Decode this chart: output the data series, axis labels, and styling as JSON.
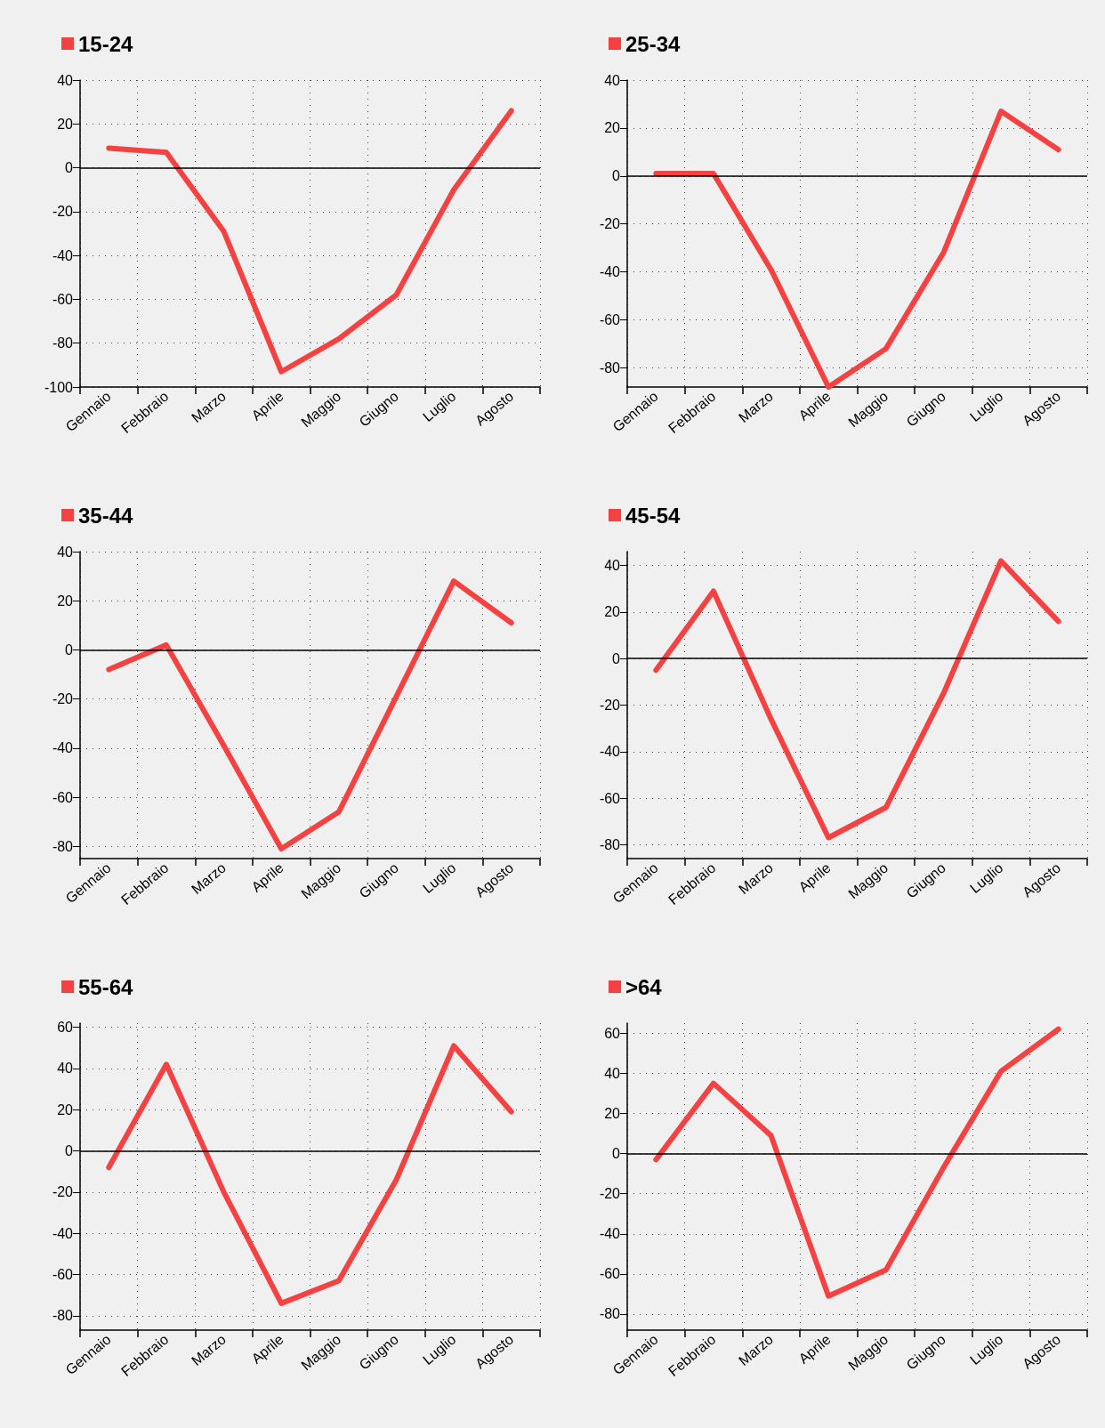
{
  "chart_data": [
    {
      "type": "line",
      "categories": [
        "Gennaio",
        "Febbraio",
        "Marzo",
        "Aprile",
        "Maggio",
        "Giugno",
        "Luglio",
        "Agosto"
      ],
      "series": [
        {
          "name": "15-24",
          "color": "#f44242",
          "values": [
            9,
            7,
            -29,
            -93,
            -78,
            -58,
            -10,
            26
          ]
        }
      ],
      "ylim": [
        -100,
        40
      ],
      "yticks": [
        -100,
        -80,
        -60,
        -40,
        -20,
        0,
        20,
        40
      ],
      "grid": true,
      "legend": "top left",
      "marker": "none",
      "ref_lines": [
        {
          "axis": "y",
          "value": 0,
          "color": "#000000"
        }
      ]
    },
    {
      "type": "line",
      "categories": [
        "Gennaio",
        "Febbraio",
        "Marzo",
        "Aprile",
        "Maggio",
        "Giugno",
        "Luglio",
        "Agosto"
      ],
      "series": [
        {
          "name": "25-34",
          "color": "#f44242",
          "values": [
            1,
            1,
            -39,
            -88,
            -72,
            -32,
            27,
            11
          ]
        }
      ],
      "ylim": [
        -88,
        40
      ],
      "yticks": [
        -80,
        -60,
        -40,
        -20,
        0,
        20,
        40
      ],
      "grid": true,
      "legend": "top left",
      "marker": "none",
      "ref_lines": [
        {
          "axis": "y",
          "value": 0,
          "color": "#000000"
        }
      ]
    },
    {
      "type": "line",
      "categories": [
        "Gennaio",
        "Febbraio",
        "Marzo",
        "Aprile",
        "Maggio",
        "Giugno",
        "Luglio",
        "Agosto"
      ],
      "series": [
        {
          "name": "35-44",
          "color": "#f44242",
          "values": [
            -8,
            2,
            -39,
            -81,
            -66,
            -19,
            28,
            11
          ]
        }
      ],
      "ylim": [
        -85,
        40
      ],
      "yticks": [
        -80,
        -60,
        -40,
        -20,
        0,
        20,
        40
      ],
      "grid": true,
      "legend": "top left",
      "marker": "none",
      "ref_lines": [
        {
          "axis": "y",
          "value": 0,
          "color": "#000000"
        }
      ]
    },
    {
      "type": "line",
      "categories": [
        "Gennaio",
        "Febbraio",
        "Marzo",
        "Aprile",
        "Maggio",
        "Giugno",
        "Luglio",
        "Agosto"
      ],
      "series": [
        {
          "name": "45-54",
          "color": "#f44242",
          "values": [
            -5,
            29,
            -26,
            -77,
            -64,
            -15,
            42,
            16
          ]
        }
      ],
      "ylim": [
        -86,
        46
      ],
      "yticks": [
        -80,
        -60,
        -40,
        -20,
        0,
        20,
        40
      ],
      "grid": true,
      "legend": "top left",
      "marker": "none",
      "ref_lines": [
        {
          "axis": "y",
          "value": 0,
          "color": "#000000"
        }
      ]
    },
    {
      "type": "line",
      "categories": [
        "Gennaio",
        "Febbraio",
        "Marzo",
        "Aprile",
        "Maggio",
        "Giugno",
        "Luglio",
        "Agosto"
      ],
      "series": [
        {
          "name": "55-64",
          "color": "#f44242",
          "values": [
            -8,
            42,
            -20,
            -74,
            -63,
            -14,
            51,
            19
          ]
        }
      ],
      "ylim": [
        -87,
        62
      ],
      "yticks": [
        -80,
        -60,
        -40,
        -20,
        0,
        20,
        40,
        60
      ],
      "grid": true,
      "legend": "top left",
      "marker": "none",
      "ref_lines": [
        {
          "axis": "y",
          "value": 0,
          "color": "#000000"
        }
      ]
    },
    {
      "type": "line",
      "categories": [
        "Gennaio",
        "Febbraio",
        "Marzo",
        "Aprile",
        "Maggio",
        "Giugno",
        "Luglio",
        "Agosto"
      ],
      "series": [
        {
          "name": ">64",
          "color": "#f44242",
          "values": [
            -3,
            35,
            9,
            -71,
            -58,
            -7,
            41,
            62
          ]
        }
      ],
      "ylim": [
        -88,
        65
      ],
      "yticks": [
        -80,
        -60,
        -40,
        -20,
        0,
        20,
        40,
        60
      ],
      "grid": true,
      "legend": "top left",
      "marker": "none",
      "ref_lines": [
        {
          "axis": "y",
          "value": 0,
          "color": "#000000"
        }
      ]
    }
  ]
}
